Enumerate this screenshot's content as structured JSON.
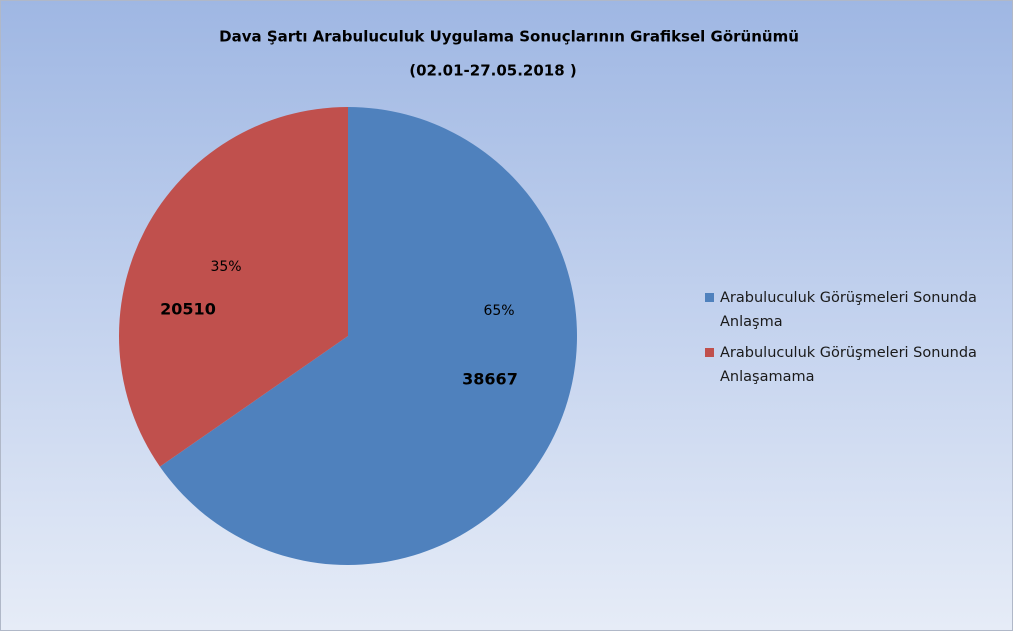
{
  "chart_data": {
    "type": "pie",
    "title": "Dava Şartı Arabuluculuk Uygulama Sonuçlarının Grafiksel Görünümü",
    "subtitle": "(02.01-27.05.2018 )",
    "categories": [
      "Arabuluculuk Görüşmeleri Sonunda Anlaşma",
      "Arabuluculuk Görüşmeleri Sonunda Anlaşamama"
    ],
    "values": [
      38667,
      20510
    ],
    "percent_labels": [
      "65%",
      "35%"
    ],
    "colors": [
      "#4f81bd",
      "#c0504d"
    ],
    "legend": "right"
  }
}
